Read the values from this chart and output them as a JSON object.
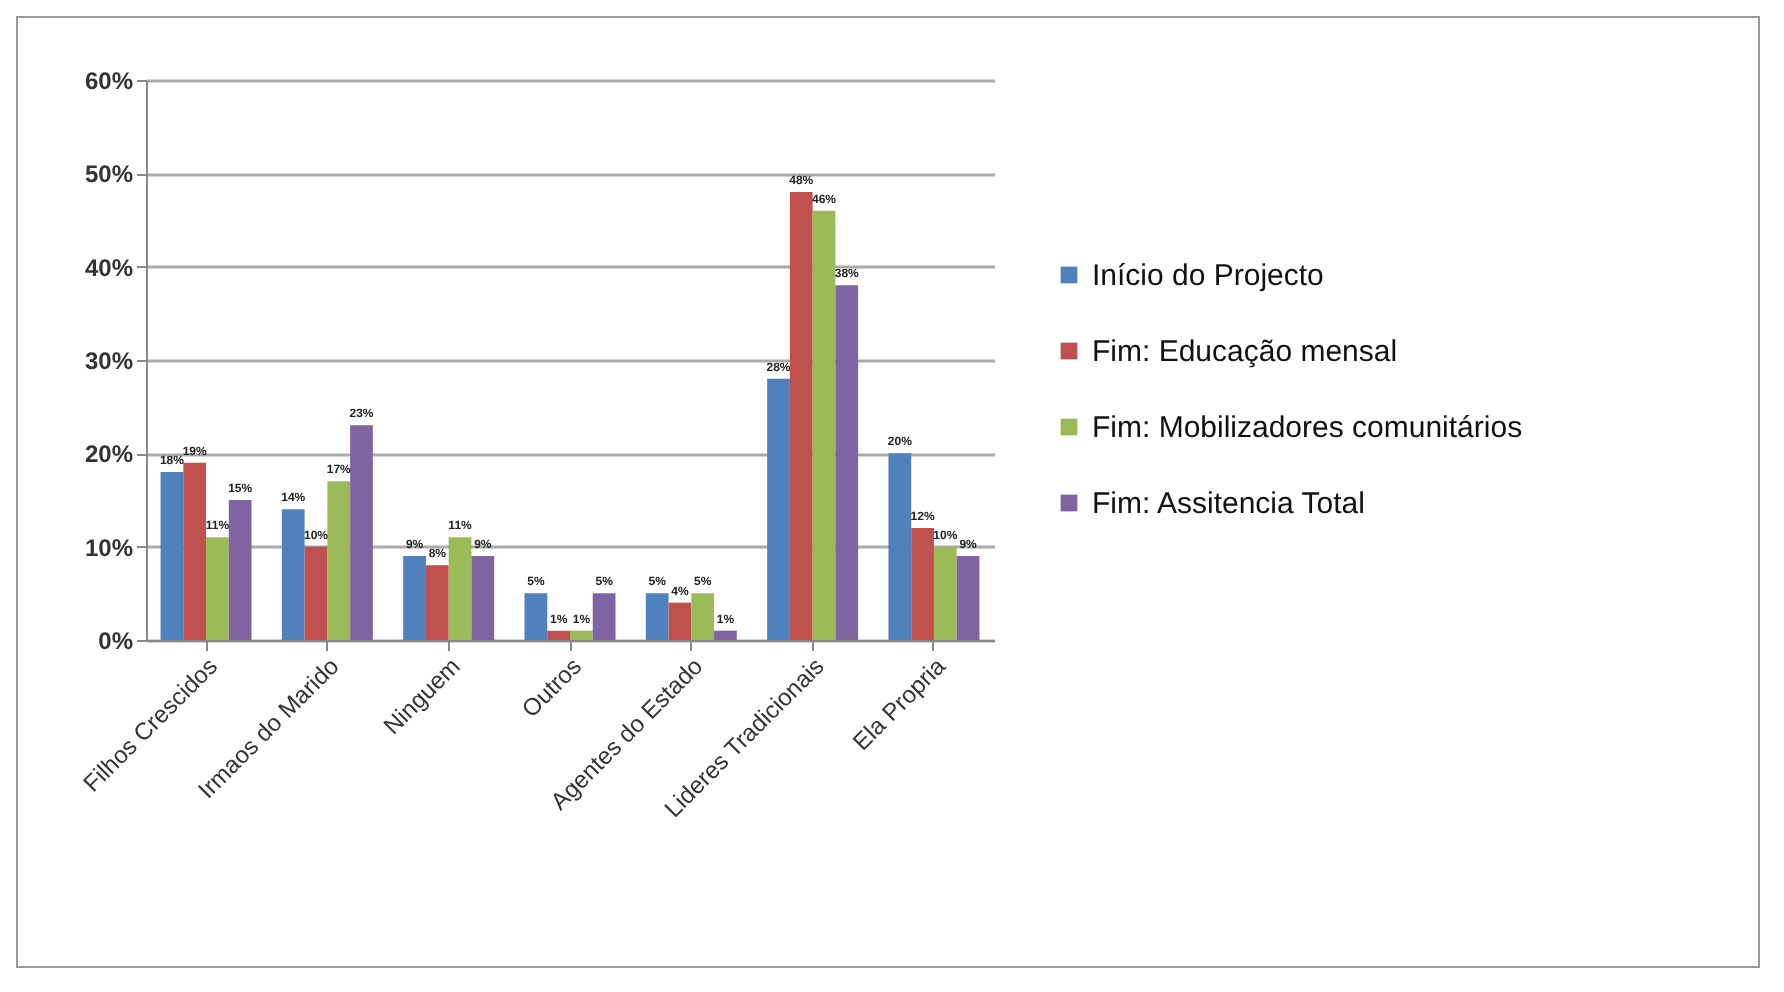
{
  "chart_data": {
    "type": "bar",
    "categories": [
      "Filhos Crescidos",
      "Irmaos do Marido",
      "Ninguem",
      "Outros",
      "Agentes do Estado",
      "Lideres Tradicionais",
      "Ela Propria"
    ],
    "series": [
      {
        "name": "Início do Projecto",
        "color": "#4f81bd",
        "values": [
          18,
          14,
          9,
          5,
          5,
          28,
          20
        ],
        "value_labels": [
          "18%",
          "14%",
          "9%",
          "5%",
          "5%",
          "28%",
          "20%"
        ]
      },
      {
        "name": "Fim: Educação mensal",
        "color": "#c0504d",
        "values": [
          19,
          10,
          8,
          1,
          4,
          48,
          12
        ],
        "value_labels": [
          "19%",
          "10%",
          "8%",
          "1%",
          "4%",
          "48%",
          "12%"
        ]
      },
      {
        "name": "Fim: Mobilizadores comunitários",
        "color": "#9bbb59",
        "values": [
          11,
          17,
          11,
          1,
          5,
          46,
          10
        ],
        "value_labels": [
          "11%",
          "17%",
          "11%",
          "1%",
          "5%",
          "46%",
          "10%"
        ]
      },
      {
        "name": "Fim: Assitencia Total",
        "color": "#8064a2",
        "values": [
          15,
          23,
          9,
          5,
          1,
          38,
          9
        ],
        "value_labels": [
          "15%",
          "23%",
          "9%",
          "5%",
          "1%",
          "38%",
          "9%"
        ]
      }
    ],
    "ylim": [
      0,
      60
    ],
    "yticks": [
      {
        "value": 0,
        "label": "0%"
      },
      {
        "value": 10,
        "label": "10%"
      },
      {
        "value": 20,
        "label": "20%"
      },
      {
        "value": 30,
        "label": "30%"
      },
      {
        "value": 40,
        "label": "40%"
      },
      {
        "value": 50,
        "label": "50%"
      },
      {
        "value": 60,
        "label": "60%"
      }
    ],
    "grid": "y",
    "legend": "right"
  }
}
